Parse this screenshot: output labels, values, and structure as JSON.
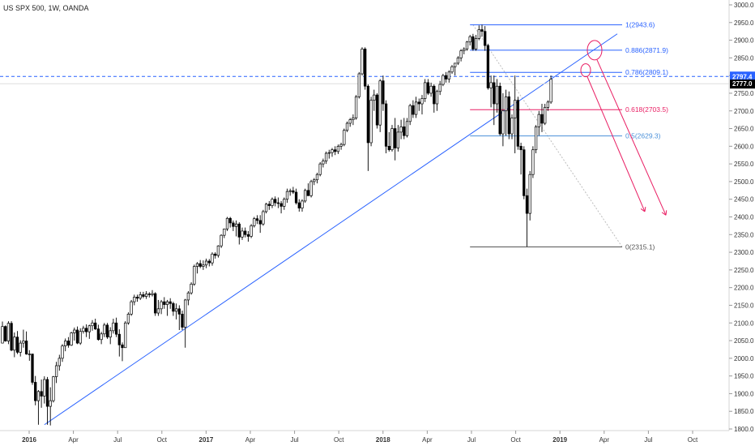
{
  "header": {
    "title": "US SPX 500, 1W, OANDA"
  },
  "chart_data": {
    "type": "candlestick",
    "title": "US SPX 500, 1W, OANDA",
    "symbol": "US SPX 500",
    "interval": "1W",
    "source": "OANDA",
    "ylim": [
      1800,
      3000
    ],
    "y_ticks": [
      1800,
      1850,
      1900,
      1950,
      2000,
      2050,
      2100,
      2150,
      2200,
      2250,
      2300,
      2350,
      2400,
      2450,
      2500,
      2550,
      2600,
      2650,
      2700,
      2750,
      2800,
      2850,
      2900,
      2950,
      3000
    ],
    "x_ticks": [
      "2016",
      "Apr",
      "Jul",
      "Oct",
      "2017",
      "Apr",
      "Jul",
      "Oct",
      "2018",
      "Apr",
      "Jul",
      "Oct",
      "2019",
      "Apr",
      "Jul",
      "Oct"
    ],
    "grid": false,
    "price_labels": [
      {
        "text": "2797.4",
        "value": 2797.4,
        "color": "#2962ff"
      },
      {
        "text": "2777.0",
        "value": 2777.0,
        "color": "#000000"
      }
    ],
    "fibonacci": {
      "levels": [
        {
          "label": "1(2943.6)",
          "price": 2943.6,
          "color": "#2962ff"
        },
        {
          "label": "0.886(2871.9)",
          "price": 2871.9,
          "color": "#2962ff"
        },
        {
          "label": "0.786(2809.1)",
          "price": 2809.1,
          "color": "#2962ff"
        },
        {
          "label": "0.618(2703.5)",
          "price": 2703.5,
          "color": "#e91e63"
        },
        {
          "label": "0.5(2629.3)",
          "price": 2629.3,
          "color": "#4a90d9"
        },
        {
          "label": "0(2315.1)",
          "price": 2315.1,
          "color": "#555555"
        }
      ]
    },
    "annotations": {
      "trendline_color": "#2962ff",
      "projection_color": "#e91e63",
      "horizontal_line_price": 2797.4
    },
    "colors": {
      "up": "#ffffff",
      "down": "#000000",
      "outline": "#000000"
    },
    "candles": [
      {
        "o": 2043,
        "h": 2104,
        "l": 2043,
        "c": 2090
      },
      {
        "o": 2090,
        "h": 2093,
        "l": 2047,
        "c": 2049
      },
      {
        "o": 2049,
        "h": 2105,
        "l": 2040,
        "c": 2099
      },
      {
        "o": 2099,
        "h": 2105,
        "l": 2020,
        "c": 2023
      },
      {
        "o": 2023,
        "h": 2073,
        "l": 2003,
        "c": 2060
      },
      {
        "o": 2060,
        "h": 2077,
        "l": 2012,
        "c": 2017
      },
      {
        "o": 2017,
        "h": 2051,
        "l": 2005,
        "c": 2043
      },
      {
        "o": 2043,
        "h": 2081,
        "l": 2030,
        "c": 2049
      },
      {
        "o": 2049,
        "h": 2076,
        "l": 2010,
        "c": 2012
      },
      {
        "o": 2012,
        "h": 2023,
        "l": 1993,
        "c": 2012
      },
      {
        "o": 2012,
        "h": 2013,
        "l": 1925,
        "c": 1932
      },
      {
        "o": 1932,
        "h": 1950,
        "l": 1867,
        "c": 1880
      },
      {
        "o": 1880,
        "h": 1910,
        "l": 1812,
        "c": 1906
      },
      {
        "o": 1906,
        "h": 1940,
        "l": 1860,
        "c": 1893
      },
      {
        "o": 1893,
        "h": 1949,
        "l": 1872,
        "c": 1940
      },
      {
        "o": 1940,
        "h": 1947,
        "l": 1812,
        "c": 1864
      },
      {
        "o": 1864,
        "h": 1918,
        "l": 1810,
        "c": 1880
      },
      {
        "o": 1880,
        "h": 1950,
        "l": 1875,
        "c": 1948
      },
      {
        "o": 1948,
        "h": 1990,
        "l": 1930,
        "c": 1979
      },
      {
        "o": 1979,
        "h": 2010,
        "l": 1965,
        "c": 2000
      },
      {
        "o": 2000,
        "h": 2040,
        "l": 1990,
        "c": 2035
      },
      {
        "o": 2035,
        "h": 2056,
        "l": 2020,
        "c": 2049
      },
      {
        "o": 2049,
        "h": 2060,
        "l": 2030,
        "c": 2037
      },
      {
        "o": 2037,
        "h": 2075,
        "l": 2035,
        "c": 2072
      },
      {
        "o": 2072,
        "h": 2087,
        "l": 2050,
        "c": 2080
      },
      {
        "o": 2080,
        "h": 2090,
        "l": 2040,
        "c": 2043
      },
      {
        "o": 2043,
        "h": 2085,
        "l": 2038,
        "c": 2076
      },
      {
        "o": 2076,
        "h": 2092,
        "l": 2070,
        "c": 2085
      },
      {
        "o": 2085,
        "h": 2096,
        "l": 2060,
        "c": 2075
      },
      {
        "o": 2075,
        "h": 2095,
        "l": 2055,
        "c": 2092
      },
      {
        "o": 2092,
        "h": 2108,
        "l": 2078,
        "c": 2100
      },
      {
        "o": 2100,
        "h": 2112,
        "l": 2080,
        "c": 2083
      },
      {
        "o": 2083,
        "h": 2095,
        "l": 2050,
        "c": 2053
      },
      {
        "o": 2053,
        "h": 2075,
        "l": 2040,
        "c": 2069
      },
      {
        "o": 2069,
        "h": 2100,
        "l": 2060,
        "c": 2094
      },
      {
        "o": 2094,
        "h": 2100,
        "l": 2055,
        "c": 2060
      },
      {
        "o": 2060,
        "h": 2088,
        "l": 2040,
        "c": 2078
      },
      {
        "o": 2078,
        "h": 2112,
        "l": 2070,
        "c": 2100
      },
      {
        "o": 2100,
        "h": 2115,
        "l": 2060,
        "c": 2068
      },
      {
        "o": 2068,
        "h": 2082,
        "l": 2005,
        "c": 2038
      },
      {
        "o": 2038,
        "h": 2045,
        "l": 1992,
        "c": 2030
      },
      {
        "o": 2030,
        "h": 2105,
        "l": 2030,
        "c": 2100
      },
      {
        "o": 2100,
        "h": 2130,
        "l": 2095,
        "c": 2125
      },
      {
        "o": 2125,
        "h": 2165,
        "l": 2120,
        "c": 2160
      },
      {
        "o": 2160,
        "h": 2180,
        "l": 2150,
        "c": 2173
      },
      {
        "o": 2173,
        "h": 2180,
        "l": 2160,
        "c": 2170
      },
      {
        "o": 2170,
        "h": 2188,
        "l": 2165,
        "c": 2180
      },
      {
        "o": 2180,
        "h": 2188,
        "l": 2170,
        "c": 2175
      },
      {
        "o": 2175,
        "h": 2190,
        "l": 2168,
        "c": 2182
      },
      {
        "o": 2182,
        "h": 2187,
        "l": 2172,
        "c": 2180
      },
      {
        "o": 2180,
        "h": 2193,
        "l": 2175,
        "c": 2183
      },
      {
        "o": 2183,
        "h": 2187,
        "l": 2120,
        "c": 2128
      },
      {
        "o": 2128,
        "h": 2165,
        "l": 2120,
        "c": 2140
      },
      {
        "o": 2140,
        "h": 2165,
        "l": 2125,
        "c": 2160
      },
      {
        "o": 2160,
        "h": 2173,
        "l": 2140,
        "c": 2152
      },
      {
        "o": 2152,
        "h": 2165,
        "l": 2120,
        "c": 2160
      },
      {
        "o": 2160,
        "h": 2170,
        "l": 2140,
        "c": 2155
      },
      {
        "o": 2155,
        "h": 2160,
        "l": 2120,
        "c": 2133
      },
      {
        "o": 2133,
        "h": 2155,
        "l": 2110,
        "c": 2140
      },
      {
        "o": 2140,
        "h": 2150,
        "l": 2080,
        "c": 2125
      },
      {
        "o": 2125,
        "h": 2135,
        "l": 2080,
        "c": 2088
      },
      {
        "o": 2088,
        "h": 2168,
        "l": 2030,
        "c": 2165
      },
      {
        "o": 2165,
        "h": 2190,
        "l": 2150,
        "c": 2185
      },
      {
        "o": 2185,
        "h": 2215,
        "l": 2180,
        "c": 2210
      },
      {
        "o": 2210,
        "h": 2265,
        "l": 2205,
        "c": 2260
      },
      {
        "o": 2260,
        "h": 2272,
        "l": 2240,
        "c": 2268
      },
      {
        "o": 2268,
        "h": 2278,
        "l": 2255,
        "c": 2260
      },
      {
        "o": 2260,
        "h": 2277,
        "l": 2250,
        "c": 2264
      },
      {
        "o": 2264,
        "h": 2282,
        "l": 2255,
        "c": 2275
      },
      {
        "o": 2275,
        "h": 2281,
        "l": 2260,
        "c": 2270
      },
      {
        "o": 2270,
        "h": 2300,
        "l": 2262,
        "c": 2295
      },
      {
        "o": 2295,
        "h": 2300,
        "l": 2282,
        "c": 2291
      },
      {
        "o": 2291,
        "h": 2320,
        "l": 2285,
        "c": 2318
      },
      {
        "o": 2318,
        "h": 2351,
        "l": 2312,
        "c": 2348
      },
      {
        "o": 2348,
        "h": 2367,
        "l": 2340,
        "c": 2366
      },
      {
        "o": 2366,
        "h": 2400,
        "l": 2360,
        "c": 2396
      },
      {
        "o": 2396,
        "h": 2400,
        "l": 2370,
        "c": 2383
      },
      {
        "o": 2383,
        "h": 2390,
        "l": 2360,
        "c": 2373
      },
      {
        "o": 2373,
        "h": 2390,
        "l": 2345,
        "c": 2380
      },
      {
        "o": 2380,
        "h": 2385,
        "l": 2322,
        "c": 2343
      },
      {
        "o": 2343,
        "h": 2370,
        "l": 2335,
        "c": 2360
      },
      {
        "o": 2360,
        "h": 2370,
        "l": 2342,
        "c": 2350
      },
      {
        "o": 2350,
        "h": 2360,
        "l": 2330,
        "c": 2345
      },
      {
        "o": 2345,
        "h": 2380,
        "l": 2340,
        "c": 2375
      },
      {
        "o": 2375,
        "h": 2400,
        "l": 2370,
        "c": 2395
      },
      {
        "o": 2395,
        "h": 2405,
        "l": 2380,
        "c": 2390
      },
      {
        "o": 2390,
        "h": 2405,
        "l": 2355,
        "c": 2380
      },
      {
        "o": 2380,
        "h": 2420,
        "l": 2375,
        "c": 2415
      },
      {
        "o": 2415,
        "h": 2440,
        "l": 2410,
        "c": 2436
      },
      {
        "o": 2436,
        "h": 2445,
        "l": 2420,
        "c": 2432
      },
      {
        "o": 2432,
        "h": 2455,
        "l": 2425,
        "c": 2450
      },
      {
        "o": 2450,
        "h": 2458,
        "l": 2430,
        "c": 2440
      },
      {
        "o": 2440,
        "h": 2455,
        "l": 2425,
        "c": 2438
      },
      {
        "o": 2438,
        "h": 2445,
        "l": 2410,
        "c": 2430
      },
      {
        "o": 2430,
        "h": 2455,
        "l": 2420,
        "c": 2450
      },
      {
        "o": 2450,
        "h": 2480,
        "l": 2440,
        "c": 2472
      },
      {
        "o": 2472,
        "h": 2480,
        "l": 2460,
        "c": 2474
      },
      {
        "o": 2474,
        "h": 2485,
        "l": 2465,
        "c": 2470
      },
      {
        "o": 2470,
        "h": 2480,
        "l": 2435,
        "c": 2440
      },
      {
        "o": 2440,
        "h": 2450,
        "l": 2415,
        "c": 2425
      },
      {
        "o": 2425,
        "h": 2450,
        "l": 2415,
        "c": 2445
      },
      {
        "o": 2445,
        "h": 2480,
        "l": 2440,
        "c": 2475
      },
      {
        "o": 2475,
        "h": 2495,
        "l": 2465,
        "c": 2460
      },
      {
        "o": 2460,
        "h": 2505,
        "l": 2455,
        "c": 2500
      },
      {
        "o": 2500,
        "h": 2510,
        "l": 2490,
        "c": 2505
      },
      {
        "o": 2505,
        "h": 2525,
        "l": 2495,
        "c": 2520
      },
      {
        "o": 2520,
        "h": 2555,
        "l": 2515,
        "c": 2550
      },
      {
        "o": 2550,
        "h": 2565,
        "l": 2540,
        "c": 2558
      },
      {
        "o": 2558,
        "h": 2585,
        "l": 2550,
        "c": 2580
      },
      {
        "o": 2580,
        "h": 2590,
        "l": 2565,
        "c": 2582
      },
      {
        "o": 2582,
        "h": 2595,
        "l": 2570,
        "c": 2590
      },
      {
        "o": 2590,
        "h": 2600,
        "l": 2575,
        "c": 2585
      },
      {
        "o": 2585,
        "h": 2605,
        "l": 2578,
        "c": 2600
      },
      {
        "o": 2600,
        "h": 2610,
        "l": 2590,
        "c": 2605
      },
      {
        "o": 2605,
        "h": 2650,
        "l": 2600,
        "c": 2645
      },
      {
        "o": 2645,
        "h": 2670,
        "l": 2640,
        "c": 2665
      },
      {
        "o": 2665,
        "h": 2680,
        "l": 2655,
        "c": 2675
      },
      {
        "o": 2675,
        "h": 2690,
        "l": 2660,
        "c": 2680
      },
      {
        "o": 2680,
        "h": 2745,
        "l": 2675,
        "c": 2740
      },
      {
        "o": 2740,
        "h": 2810,
        "l": 2735,
        "c": 2805
      },
      {
        "o": 2805,
        "h": 2880,
        "l": 2800,
        "c": 2875
      },
      {
        "o": 2875,
        "h": 2880,
        "l": 2760,
        "c": 2770
      },
      {
        "o": 2770,
        "h": 2775,
        "l": 2530,
        "c": 2610
      },
      {
        "o": 2610,
        "h": 2740,
        "l": 2600,
        "c": 2730
      },
      {
        "o": 2730,
        "h": 2760,
        "l": 2700,
        "c": 2745
      },
      {
        "o": 2745,
        "h": 2750,
        "l": 2650,
        "c": 2660
      },
      {
        "o": 2660,
        "h": 2790,
        "l": 2640,
        "c": 2785
      },
      {
        "o": 2785,
        "h": 2800,
        "l": 2700,
        "c": 2720
      },
      {
        "o": 2720,
        "h": 2730,
        "l": 2580,
        "c": 2600
      },
      {
        "o": 2600,
        "h": 2640,
        "l": 2585,
        "c": 2590
      },
      {
        "o": 2590,
        "h": 2660,
        "l": 2585,
        "c": 2650
      },
      {
        "o": 2650,
        "h": 2680,
        "l": 2560,
        "c": 2595
      },
      {
        "o": 2595,
        "h": 2660,
        "l": 2585,
        "c": 2640
      },
      {
        "o": 2640,
        "h": 2675,
        "l": 2620,
        "c": 2655
      },
      {
        "o": 2655,
        "h": 2680,
        "l": 2620,
        "c": 2630
      },
      {
        "o": 2630,
        "h": 2680,
        "l": 2625,
        "c": 2670
      },
      {
        "o": 2670,
        "h": 2720,
        "l": 2660,
        "c": 2715
      },
      {
        "o": 2715,
        "h": 2730,
        "l": 2680,
        "c": 2690
      },
      {
        "o": 2690,
        "h": 2740,
        "l": 2680,
        "c": 2725
      },
      {
        "o": 2725,
        "h": 2735,
        "l": 2700,
        "c": 2720
      },
      {
        "o": 2720,
        "h": 2745,
        "l": 2690,
        "c": 2735
      },
      {
        "o": 2735,
        "h": 2790,
        "l": 2725,
        "c": 2780
      },
      {
        "o": 2780,
        "h": 2790,
        "l": 2745,
        "c": 2750
      },
      {
        "o": 2750,
        "h": 2780,
        "l": 2740,
        "c": 2770
      },
      {
        "o": 2770,
        "h": 2775,
        "l": 2695,
        "c": 2720
      },
      {
        "o": 2720,
        "h": 2760,
        "l": 2700,
        "c": 2755
      },
      {
        "o": 2755,
        "h": 2785,
        "l": 2745,
        "c": 2775
      },
      {
        "o": 2775,
        "h": 2805,
        "l": 2770,
        "c": 2800
      },
      {
        "o": 2800,
        "h": 2810,
        "l": 2780,
        "c": 2790
      },
      {
        "o": 2790,
        "h": 2815,
        "l": 2780,
        "c": 2810
      },
      {
        "o": 2810,
        "h": 2830,
        "l": 2805,
        "c": 2825
      },
      {
        "o": 2825,
        "h": 2835,
        "l": 2800,
        "c": 2835
      },
      {
        "o": 2835,
        "h": 2855,
        "l": 2830,
        "c": 2850
      },
      {
        "o": 2850,
        "h": 2875,
        "l": 2840,
        "c": 2870
      },
      {
        "o": 2870,
        "h": 2880,
        "l": 2860,
        "c": 2875
      },
      {
        "o": 2875,
        "h": 2898,
        "l": 2870,
        "c": 2895
      },
      {
        "o": 2895,
        "h": 2915,
        "l": 2885,
        "c": 2910
      },
      {
        "o": 2910,
        "h": 2918,
        "l": 2870,
        "c": 2875
      },
      {
        "o": 2875,
        "h": 2915,
        "l": 2870,
        "c": 2905
      },
      {
        "o": 2905,
        "h": 2942,
        "l": 2900,
        "c": 2930
      },
      {
        "o": 2930,
        "h": 2944,
        "l": 2910,
        "c": 2925
      },
      {
        "o": 2925,
        "h": 2940,
        "l": 2870,
        "c": 2885
      },
      {
        "o": 2885,
        "h": 2890,
        "l": 2760,
        "c": 2765
      },
      {
        "o": 2765,
        "h": 2800,
        "l": 2710,
        "c": 2780
      },
      {
        "o": 2780,
        "h": 2800,
        "l": 2660,
        "c": 2720
      },
      {
        "o": 2720,
        "h": 2790,
        "l": 2695,
        "c": 2770
      },
      {
        "o": 2770,
        "h": 2780,
        "l": 2630,
        "c": 2635
      },
      {
        "o": 2635,
        "h": 2750,
        "l": 2600,
        "c": 2700
      },
      {
        "o": 2700,
        "h": 2760,
        "l": 2630,
        "c": 2740
      },
      {
        "o": 2740,
        "h": 2755,
        "l": 2620,
        "c": 2635
      },
      {
        "o": 2635,
        "h": 2690,
        "l": 2620,
        "c": 2680
      },
      {
        "o": 2680,
        "h": 2800,
        "l": 2580,
        "c": 2730
      },
      {
        "o": 2730,
        "h": 2740,
        "l": 2590,
        "c": 2600
      },
      {
        "o": 2600,
        "h": 2610,
        "l": 2520,
        "c": 2590
      },
      {
        "o": 2590,
        "h": 2600,
        "l": 2450,
        "c": 2460
      },
      {
        "o": 2460,
        "h": 2480,
        "l": 2316,
        "c": 2410
      },
      {
        "o": 2410,
        "h": 2530,
        "l": 2390,
        "c": 2520
      },
      {
        "o": 2520,
        "h": 2600,
        "l": 2510,
        "c": 2590
      },
      {
        "o": 2590,
        "h": 2660,
        "l": 2580,
        "c": 2655
      },
      {
        "o": 2655,
        "h": 2700,
        "l": 2630,
        "c": 2690
      },
      {
        "o": 2690,
        "h": 2720,
        "l": 2640,
        "c": 2665
      },
      {
        "o": 2665,
        "h": 2720,
        "l": 2660,
        "c": 2710
      },
      {
        "o": 2710,
        "h": 2730,
        "l": 2700,
        "c": 2725
      },
      {
        "o": 2725,
        "h": 2800,
        "l": 2720,
        "c": 2790
      }
    ]
  }
}
